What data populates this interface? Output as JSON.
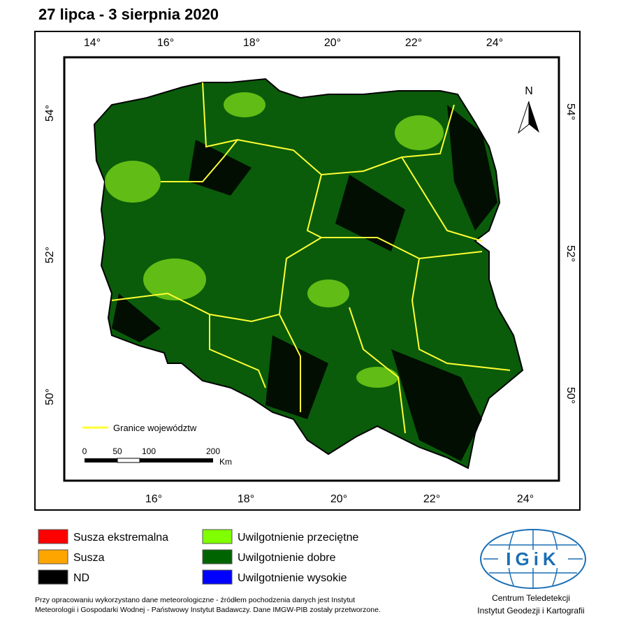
{
  "title": "27 lipca - 3 sierpnia 2020",
  "map": {
    "top_labels": [
      "14°",
      "16°",
      "18°",
      "20°",
      "22°",
      "24°"
    ],
    "bottom_labels": [
      "16°",
      "18°",
      "20°",
      "22°",
      "24°"
    ],
    "left_labels": [
      "54°",
      "52°",
      "50°"
    ],
    "right_labels": [
      "54°",
      "52°",
      "50°"
    ],
    "north": "N",
    "boundary_legend": "Granice województw",
    "scale": {
      "labels": [
        "0",
        "50",
        "100",
        "200"
      ],
      "unit": "Km"
    }
  },
  "legend": {
    "items": [
      {
        "label": "Susza ekstremalna",
        "color": "#ff0000"
      },
      {
        "label": "Susza",
        "color": "#ffa500"
      },
      {
        "label": "ND",
        "color": "#000000"
      },
      {
        "label": "Uwilgotnienie przeciętne",
        "color": "#80ff00"
      },
      {
        "label": "Uwilgotnienie dobre",
        "color": "#006400"
      },
      {
        "label": "Uwilgotnienie wysokie",
        "color": "#0000ff"
      }
    ]
  },
  "footnote": [
    "Przy opracowaniu wykorzystano dane meteorologiczne - źródłem pochodzenia danych jest Instytut",
    "Meteorologii i Gospodarki Wodnej - Państwowy Instytut Badawczy. Dane IMGW-PIB zostały przetworzone."
  ],
  "logo": {
    "text": "IGiK",
    "lines": [
      "Centrum Teledetekcji",
      "Instytut Geodezji i Kartografii"
    ]
  }
}
